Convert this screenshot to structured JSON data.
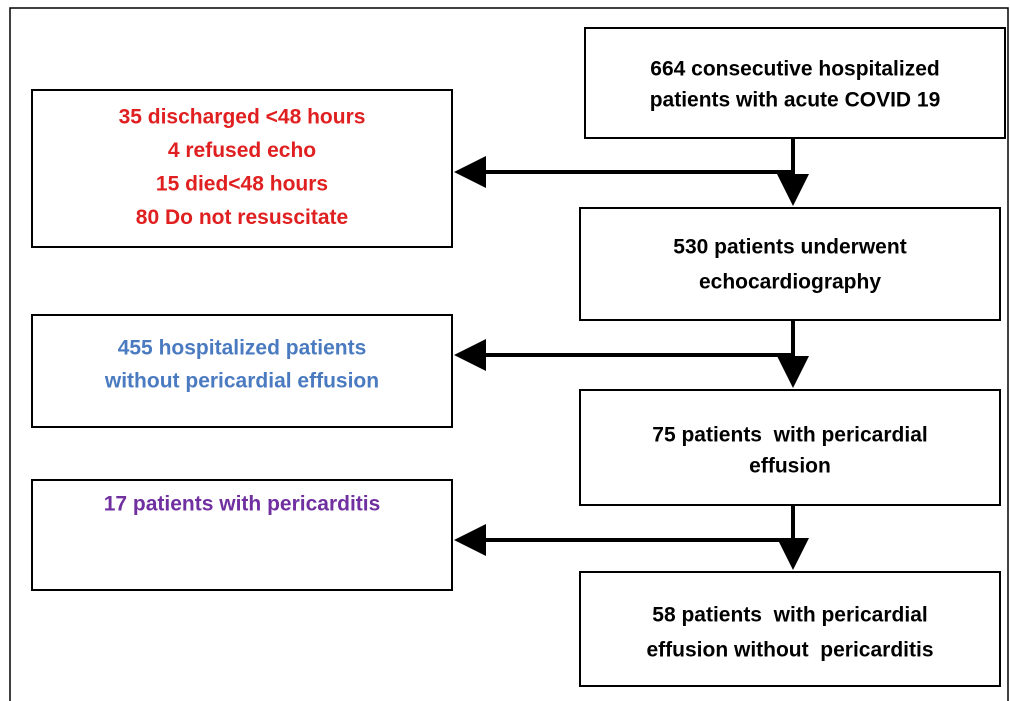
{
  "nodes": [
    {
      "lines": [
        "664 consecutive hospitalized",
        "patients with acute COVID 19"
      ]
    },
    {
      "lines": [
        "35 discharged <48 hours",
        "4 refused echo",
        "15 died<48 hours",
        "80 Do not resuscitate"
      ]
    },
    {
      "lines": [
        "530 patients underwent",
        "echocardiography"
      ]
    },
    {
      "lines": [
        "455 hospitalized patients",
        "without pericardial effusion"
      ]
    },
    {
      "lines": [
        "75 patients  with pericardial",
        "effusion"
      ]
    },
    {
      "lines": [
        "17 patients with pericarditis"
      ]
    },
    {
      "lines": [
        "58 patients  with pericardial",
        "effusion without  pericarditis"
      ]
    }
  ]
}
